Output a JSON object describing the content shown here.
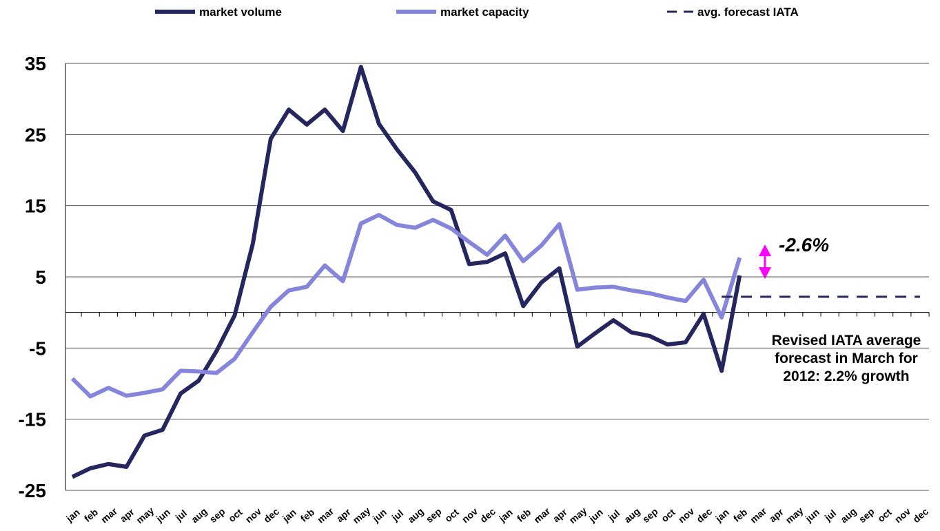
{
  "chart_data": {
    "type": "line",
    "categories": [
      "jan",
      "feb",
      "mar",
      "apr",
      "may",
      "jun",
      "jul",
      "aug",
      "sep",
      "oct",
      "nov",
      "dec",
      "jan",
      "feb",
      "mar",
      "apr",
      "may",
      "jun",
      "jul",
      "aug",
      "sep",
      "oct",
      "nov",
      "dec",
      "jan",
      "feb",
      "mar",
      "apr",
      "may",
      "jun",
      "jul",
      "aug",
      "sep",
      "oct",
      "nov",
      "dec",
      "jan",
      "feb",
      "mar",
      "apr",
      "may",
      "jun",
      "jul",
      "aug",
      "sep",
      "oct",
      "nov",
      "dec"
    ],
    "series": [
      {
        "name": "market volume",
        "color": "#26265f",
        "dash": false,
        "values": [
          -23.1,
          -21.9,
          -21.3,
          -21.7,
          -17.3,
          -16.5,
          -11.4,
          -9.6,
          -5.4,
          -0.4,
          9.6,
          24.4,
          28.5,
          26.4,
          28.5,
          25.5,
          34.5,
          26.5,
          22.9,
          19.7,
          15.6,
          14.4,
          6.8,
          7.1,
          8.3,
          0.9,
          4.2,
          6.2,
          -4.8,
          -2.9,
          -1.1,
          -2.8,
          -3.3,
          -4.5,
          -4.2,
          -0.2,
          -8.2,
          5.2,
          null,
          null,
          null,
          null,
          null,
          null,
          null,
          null,
          null,
          null
        ]
      },
      {
        "name": "market capacity",
        "color": "#8585dc",
        "dash": false,
        "values": [
          -9.3,
          -11.8,
          -10.6,
          -11.7,
          -11.3,
          -10.8,
          -8.2,
          -8.3,
          -8.5,
          -6.5,
          -2.8,
          0.8,
          3.1,
          3.6,
          6.6,
          4.4,
          12.5,
          13.7,
          12.3,
          11.9,
          13.0,
          11.8,
          9.9,
          8.1,
          10.8,
          7.2,
          9.4,
          12.4,
          3.2,
          3.5,
          3.6,
          3.1,
          2.7,
          2.1,
          1.6,
          4.6,
          -0.7,
          7.7,
          null,
          null,
          null,
          null,
          null,
          null,
          null,
          null,
          null,
          null
        ]
      },
      {
        "name": "avg. forecast IATA",
        "color": "#26265f",
        "dash": true,
        "values": [
          null,
          null,
          null,
          null,
          null,
          null,
          null,
          null,
          null,
          null,
          null,
          null,
          null,
          null,
          null,
          null,
          null,
          null,
          null,
          null,
          null,
          null,
          null,
          null,
          null,
          null,
          null,
          null,
          null,
          null,
          null,
          null,
          null,
          null,
          null,
          null,
          2.2,
          2.2,
          2.2,
          2.2,
          2.2,
          2.2,
          2.2,
          2.2,
          2.2,
          2.2,
          2.2,
          2.2
        ]
      }
    ],
    "ylim": [
      -25,
      35
    ],
    "yticks": [
      -25,
      -15,
      -5,
      5,
      15,
      25,
      35
    ],
    "grid": true,
    "annotations": [
      "-2.6%"
    ],
    "note_lines": [
      "Revised IATA average",
      "forecast in March  for",
      "2012: 2.2% growth"
    ]
  }
}
